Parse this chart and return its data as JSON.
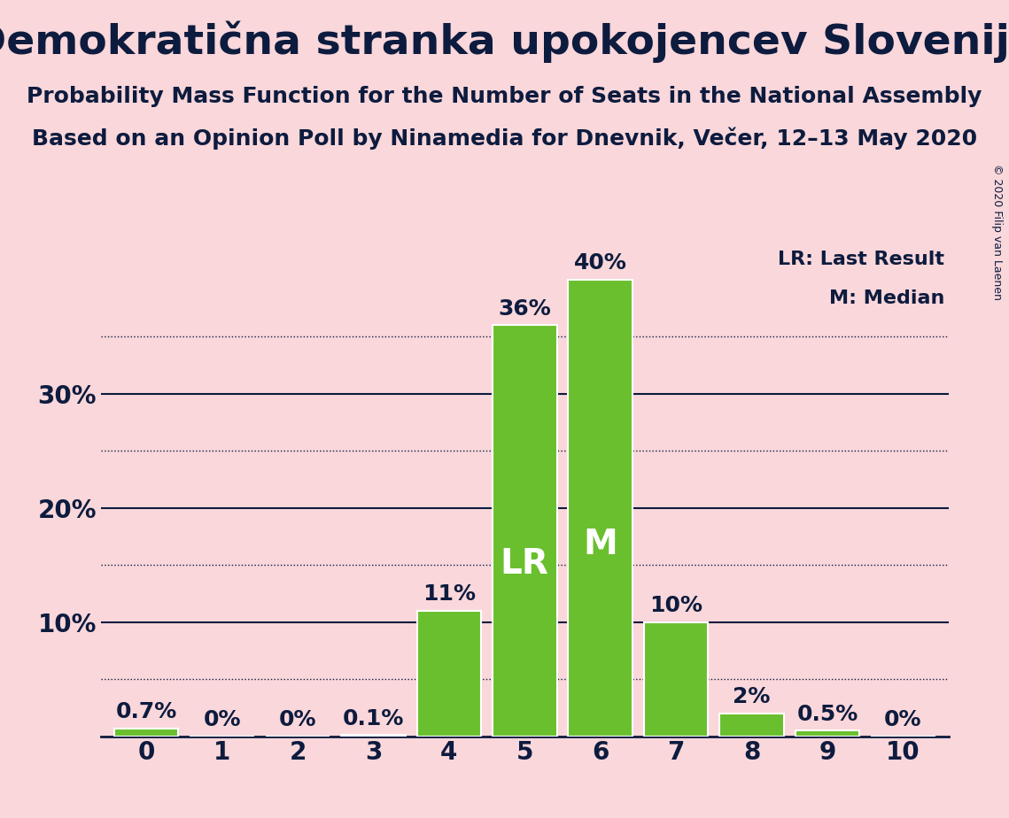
{
  "title": "Demokratična stranka upokojencev Slovenije",
  "subtitle1": "Probability Mass Function for the Number of Seats in the National Assembly",
  "subtitle2": "Based on an Opinion Poll by Ninamedia for Dnevnik, Večer, 12–13 May 2020",
  "copyright": "© 2020 Filip van Laenen",
  "categories": [
    0,
    1,
    2,
    3,
    4,
    5,
    6,
    7,
    8,
    9,
    10
  ],
  "values": [
    0.7,
    0.0,
    0.0,
    0.1,
    11.0,
    36.0,
    40.0,
    10.0,
    2.0,
    0.5,
    0.0
  ],
  "bar_color": "#6abf2e",
  "background_color": "#f9d7da",
  "text_color": "#0d1b3e",
  "label_LR_seat": 5,
  "label_M_seat": 6,
  "LR_label_text": "LR",
  "M_label_text": "M",
  "legend_LR": "LR: Last Result",
  "legend_M": "M: Median",
  "ylim": [
    0,
    43
  ],
  "yticks": [
    0,
    5,
    10,
    15,
    20,
    25,
    30,
    35,
    40
  ],
  "solid_yticks": [
    10,
    20,
    30
  ],
  "dotted_yticks": [
    5,
    15,
    25,
    35
  ],
  "bar_label_fontsize": 18,
  "title_fontsize": 34,
  "subtitle_fontsize": 18,
  "axis_fontsize": 20,
  "label_inside_fontsize": 28,
  "legend_fontsize": 16,
  "copyright_fontsize": 9
}
